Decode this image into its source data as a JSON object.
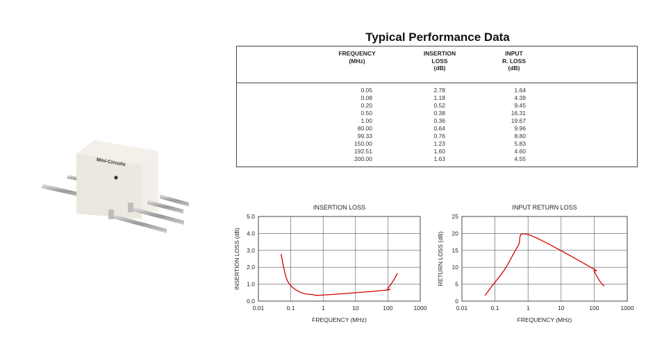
{
  "table": {
    "title": "Typical Performance Data",
    "headers": [
      [
        "FREQUENCY",
        "(MHz)"
      ],
      [
        "INSERTION",
        "LOSS",
        "(dB)"
      ],
      [
        "INPUT",
        "R. LOSS",
        "(dB)"
      ]
    ],
    "rows": [
      [
        "0.05",
        "2.78",
        "1.64"
      ],
      [
        "0.08",
        "1.18",
        "4.39"
      ],
      [
        "0.20",
        "0.52",
        "9.45"
      ],
      [
        "0.50",
        "0.38",
        "16.31"
      ],
      [
        "1.00",
        "0.36",
        "19.67"
      ],
      [
        "80.00",
        "0.64",
        "9.96"
      ],
      [
        "99.33",
        "0.76",
        "8.80"
      ],
      [
        "150.00",
        "1.23",
        "5.83"
      ],
      [
        "192.51",
        "1.60",
        "4.60"
      ],
      [
        "200.00",
        "1.63",
        "4.55"
      ]
    ]
  },
  "chart_data": [
    {
      "type": "line",
      "title": "INSERTION LOSS",
      "xlabel": "FREQUENCY (MHz)",
      "ylabel": "INSERTION LOSS (dB)",
      "xscale": "log",
      "xlim": [
        0.01,
        1000
      ],
      "ylim": [
        0,
        5
      ],
      "xticks": [
        "0.01",
        "0.1",
        "1",
        "10",
        "100",
        "1000"
      ],
      "yticks": [
        "0.0",
        "1.0",
        "2.0",
        "3.0",
        "4.0",
        "5.0"
      ],
      "grid": true,
      "line_color": "#d40000",
      "x": [
        0.05,
        0.08,
        0.2,
        0.5,
        1.0,
        80.0,
        99.33,
        150.0,
        192.51,
        200.0
      ],
      "y": [
        2.78,
        1.18,
        0.52,
        0.38,
        0.36,
        0.64,
        0.76,
        1.23,
        1.6,
        1.63
      ]
    },
    {
      "type": "line",
      "title": "INPUT RETURN LOSS",
      "xlabel": "FREQUENCY (MHz)",
      "ylabel": "RETURN LOSS (dB)",
      "xscale": "log",
      "xlim": [
        0.01,
        1000
      ],
      "ylim": [
        0,
        25
      ],
      "xticks": [
        "0.01",
        "0.1",
        "1",
        "10",
        "100",
        "1000"
      ],
      "yticks": [
        "0",
        "5",
        "10",
        "15",
        "20",
        "25"
      ],
      "grid": true,
      "line_color": "#d40000",
      "x": [
        0.05,
        0.08,
        0.2,
        0.5,
        1.0,
        80.0,
        99.33,
        150.0,
        192.51,
        200.0
      ],
      "y": [
        1.64,
        4.39,
        9.45,
        16.31,
        19.67,
        9.96,
        8.8,
        5.83,
        4.6,
        4.55
      ]
    }
  ],
  "photo": {
    "brand": "Mini-Circuits"
  }
}
